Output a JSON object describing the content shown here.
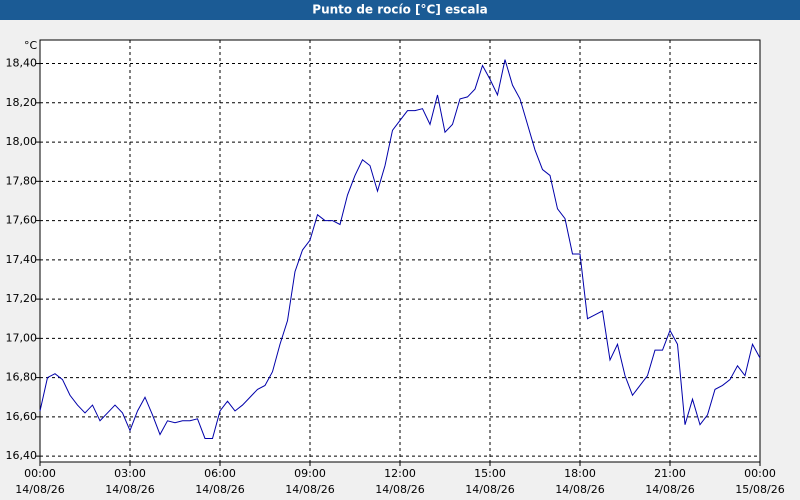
{
  "chart_data": {
    "type": "line",
    "title": "Punto de rocío [°C] escala",
    "y_unit": "°C",
    "color": "#0000aa",
    "grid": true,
    "xlim": [
      0,
      24
    ],
    "ylim": [
      16.37,
      18.52
    ],
    "xticks": [
      {
        "value": 0,
        "label": "00:00"
      },
      {
        "value": 3,
        "label": "03:00"
      },
      {
        "value": 6,
        "label": "06:00"
      },
      {
        "value": 9,
        "label": "09:00"
      },
      {
        "value": 12,
        "label": "12:00"
      },
      {
        "value": 15,
        "label": "15:00"
      },
      {
        "value": 18,
        "label": "18:00"
      },
      {
        "value": 21,
        "label": "21:00"
      },
      {
        "value": 24,
        "label": "00:00"
      }
    ],
    "xtick_dates": [
      "14/08/26",
      "14/08/26",
      "14/08/26",
      "14/08/26",
      "14/08/26",
      "14/08/26",
      "14/08/26",
      "14/08/26",
      "15/08/26"
    ],
    "yticks": [
      {
        "value": 16.4,
        "label": "16,40"
      },
      {
        "value": 16.6,
        "label": "16,60"
      },
      {
        "value": 16.8,
        "label": "16,80"
      },
      {
        "value": 17.0,
        "label": "17,00"
      },
      {
        "value": 17.2,
        "label": "17,20"
      },
      {
        "value": 17.4,
        "label": "17,40"
      },
      {
        "value": 17.6,
        "label": "17,60"
      },
      {
        "value": 17.8,
        "label": "17,80"
      },
      {
        "value": 18.0,
        "label": "18,00"
      },
      {
        "value": 18.2,
        "label": "18,20"
      },
      {
        "value": 18.4,
        "label": "18,40"
      }
    ],
    "x": [
      0,
      0.25,
      0.5,
      0.75,
      1,
      1.25,
      1.5,
      1.75,
      2,
      2.25,
      2.5,
      2.75,
      3,
      3.25,
      3.5,
      3.75,
      4,
      4.25,
      4.5,
      4.75,
      5,
      5.25,
      5.5,
      5.75,
      6,
      6.25,
      6.5,
      6.75,
      7,
      7.25,
      7.5,
      7.75,
      8,
      8.25,
      8.5,
      8.75,
      9,
      9.25,
      9.5,
      9.75,
      10,
      10.25,
      10.5,
      10.75,
      11,
      11.25,
      11.5,
      11.75,
      12,
      12.25,
      12.5,
      12.75,
      13,
      13.25,
      13.5,
      13.75,
      14,
      14.25,
      14.5,
      14.75,
      15,
      15.25,
      15.5,
      15.75,
      16,
      16.25,
      16.5,
      16.75,
      17,
      17.25,
      17.5,
      17.75,
      18,
      18.25,
      18.5,
      18.75,
      19,
      19.25,
      19.5,
      19.75,
      20,
      20.25,
      20.5,
      20.75,
      21,
      21.25,
      21.5,
      21.75,
      22,
      22.25,
      22.5,
      22.75,
      23,
      23.25,
      23.5,
      23.75,
      24
    ],
    "values": [
      16.63,
      16.8,
      16.82,
      16.79,
      16.71,
      16.66,
      16.62,
      16.66,
      16.58,
      16.62,
      16.66,
      16.62,
      16.53,
      16.63,
      16.7,
      16.61,
      16.51,
      16.58,
      16.57,
      16.58,
      16.58,
      16.59,
      16.49,
      16.49,
      16.63,
      16.68,
      16.63,
      16.66,
      16.7,
      16.74,
      16.76,
      16.83,
      16.97,
      17.09,
      17.34,
      17.45,
      17.5,
      17.63,
      17.6,
      17.6,
      17.58,
      17.73,
      17.83,
      17.91,
      17.88,
      17.75,
      17.88,
      18.06,
      18.11,
      18.16,
      18.16,
      18.17,
      18.09,
      18.24,
      18.05,
      18.09,
      18.22,
      18.23,
      18.27,
      18.39,
      18.32,
      18.24,
      18.42,
      18.29,
      18.22,
      18.09,
      17.96,
      17.86,
      17.83,
      17.66,
      17.61,
      17.43,
      17.43,
      17.1,
      17.12,
      17.14,
      16.89,
      16.97,
      16.81,
      16.71,
      16.76,
      16.81,
      16.94,
      16.94,
      17.04,
      16.97,
      16.56,
      16.69,
      16.56,
      16.61,
      16.74,
      16.76,
      16.79,
      16.86,
      16.81,
      16.97,
      16.9
    ]
  }
}
